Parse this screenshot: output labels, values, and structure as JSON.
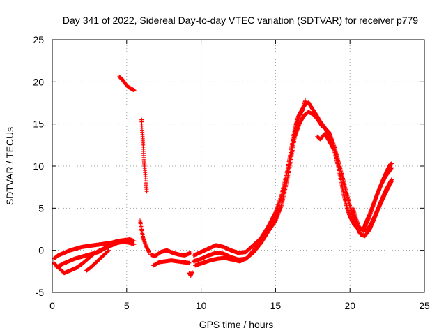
{
  "chart_data": {
    "type": "scatter",
    "title": "Day 341 of 2022, Sidereal Day-to-day VTEC variation (SDTVAR) for receiver p779",
    "xlabel": "GPS time / hours",
    "ylabel": "SDTVAR / TECUs",
    "xlim": [
      0,
      25
    ],
    "ylim": [
      -5,
      25
    ],
    "xticks": [
      0,
      5,
      10,
      15,
      20,
      25
    ],
    "yticks": [
      -5,
      0,
      5,
      10,
      15,
      20,
      25
    ],
    "xtick_labels": [
      "0",
      "5",
      "10",
      "15",
      "20",
      "25"
    ],
    "ytick_labels": [
      "-5",
      "0",
      "5",
      "10",
      "15",
      "20",
      "25"
    ],
    "grid": true,
    "marker": "+",
    "series": [
      {
        "name": "SDTVAR",
        "color": "#ff0000",
        "tracks": [
          [
            [
              0.1,
              -1.5
            ],
            [
              0.5,
              -2.2
            ],
            [
              0.8,
              -2.7
            ],
            [
              1.2,
              -2.4
            ],
            [
              1.6,
              -2.1
            ],
            [
              2.0,
              -1.6
            ],
            [
              2.4,
              -1.0
            ],
            [
              2.8,
              -0.4
            ],
            [
              3.2,
              0.0
            ],
            [
              3.6,
              0.3
            ],
            [
              4.0,
              0.6
            ],
            [
              4.4,
              0.9
            ],
            [
              4.8,
              1.0
            ],
            [
              5.2,
              0.9
            ],
            [
              5.5,
              0.7
            ]
          ],
          [
            [
              0.1,
              -1.0
            ],
            [
              0.4,
              -0.6
            ],
            [
              0.8,
              -0.3
            ],
            [
              1.2,
              0.0
            ],
            [
              1.6,
              0.2
            ],
            [
              2.0,
              0.4
            ],
            [
              2.4,
              0.5
            ],
            [
              2.8,
              0.6
            ],
            [
              3.2,
              0.7
            ],
            [
              3.6,
              0.8
            ],
            [
              4.0,
              0.9
            ],
            [
              4.4,
              1.1
            ],
            [
              4.8,
              1.2
            ],
            [
              5.2,
              1.3
            ],
            [
              5.5,
              1.1
            ]
          ],
          [
            [
              0.3,
              -2.0
            ],
            [
              0.7,
              -1.6
            ],
            [
              1.1,
              -1.3
            ],
            [
              1.5,
              -1.0
            ],
            [
              1.9,
              -0.8
            ],
            [
              2.3,
              -0.6
            ],
            [
              2.7,
              -0.4
            ],
            [
              3.1,
              -0.2
            ],
            [
              3.4,
              0.1
            ]
          ],
          [
            [
              2.3,
              -2.4
            ],
            [
              2.6,
              -2.0
            ],
            [
              2.9,
              -1.5
            ],
            [
              3.2,
              -1.0
            ],
            [
              3.5,
              -0.5
            ],
            [
              3.8,
              0.0
            ]
          ],
          [
            [
              4.5,
              20.6
            ],
            [
              4.7,
              20.3
            ],
            [
              4.9,
              19.8
            ],
            [
              5.1,
              19.4
            ],
            [
              5.3,
              19.2
            ],
            [
              5.5,
              19.0
            ]
          ],
          [
            [
              6.0,
              15.5
            ],
            [
              6.05,
              14.0
            ],
            [
              6.1,
              12.5
            ],
            [
              6.15,
              11.0
            ],
            [
              6.2,
              10.0
            ],
            [
              6.25,
              9.0
            ],
            [
              6.3,
              8.0
            ],
            [
              6.35,
              7.0
            ]
          ],
          [
            [
              5.9,
              3.5
            ],
            [
              6.0,
              2.5
            ],
            [
              6.1,
              1.5
            ],
            [
              6.3,
              0.5
            ],
            [
              6.5,
              -0.2
            ]
          ],
          [
            [
              6.6,
              -0.5
            ],
            [
              6.9,
              -0.7
            ],
            [
              7.3,
              -0.2
            ],
            [
              7.7,
              0.0
            ],
            [
              8.1,
              -0.3
            ],
            [
              8.5,
              -0.5
            ],
            [
              8.9,
              -0.6
            ],
            [
              9.3,
              -0.3
            ]
          ],
          [
            [
              6.8,
              -1.8
            ],
            [
              7.2,
              -1.4
            ],
            [
              7.6,
              -1.3
            ],
            [
              8.0,
              -1.2
            ],
            [
              8.4,
              -1.3
            ],
            [
              8.8,
              -1.4
            ],
            [
              9.2,
              -1.5
            ]
          ],
          [
            [
              9.2,
              -2.7
            ],
            [
              9.3,
              -3.0
            ],
            [
              9.4,
              -2.6
            ]
          ],
          [
            [
              9.5,
              -0.6
            ],
            [
              10.0,
              -0.2
            ],
            [
              10.5,
              0.2
            ],
            [
              11.0,
              0.6
            ],
            [
              11.5,
              0.4
            ],
            [
              12.0,
              0.0
            ],
            [
              12.5,
              -0.3
            ],
            [
              13.0,
              -0.2
            ],
            [
              13.5,
              0.6
            ],
            [
              14.0,
              1.4
            ],
            [
              14.5,
              2.8
            ],
            [
              15.0,
              4.5
            ],
            [
              15.4,
              6.5
            ],
            [
              15.8,
              9.5
            ],
            [
              16.1,
              12.5
            ],
            [
              16.3,
              14.5
            ],
            [
              16.5,
              15.8
            ],
            [
              16.8,
              16.8
            ],
            [
              17.0,
              17.3
            ],
            [
              17.2,
              17.6
            ],
            [
              17.4,
              17.0
            ],
            [
              17.7,
              16.2
            ],
            [
              18.0,
              15.3
            ],
            [
              18.3,
              14.6
            ],
            [
              18.6,
              13.6
            ],
            [
              18.9,
              12.2
            ],
            [
              19.2,
              10.0
            ],
            [
              19.4,
              8.2
            ],
            [
              19.6,
              6.5
            ],
            [
              19.8,
              5.0
            ],
            [
              20.0,
              4.0
            ],
            [
              20.3,
              3.0
            ],
            [
              20.6,
              2.5
            ],
            [
              20.9,
              2.6
            ],
            [
              21.2,
              3.5
            ],
            [
              21.5,
              5.0
            ],
            [
              21.8,
              6.5
            ],
            [
              22.1,
              7.8
            ],
            [
              22.4,
              8.8
            ],
            [
              22.7,
              9.5
            ],
            [
              22.8,
              9.8
            ]
          ],
          [
            [
              9.5,
              -1.3
            ],
            [
              10.0,
              -1.0
            ],
            [
              10.5,
              -0.6
            ],
            [
              11.0,
              -0.3
            ],
            [
              11.5,
              -0.4
            ],
            [
              12.0,
              -0.8
            ],
            [
              12.5,
              -1.1
            ],
            [
              13.0,
              -1.0
            ],
            [
              13.5,
              -0.3
            ],
            [
              14.0,
              0.8
            ],
            [
              14.5,
              2.2
            ],
            [
              15.0,
              3.5
            ],
            [
              15.4,
              5.3
            ],
            [
              15.8,
              8.5
            ],
            [
              16.1,
              11.5
            ],
            [
              16.3,
              13.5
            ],
            [
              16.6,
              15.0
            ],
            [
              16.9,
              16.0
            ],
            [
              17.2,
              16.4
            ],
            [
              17.5,
              16.2
            ],
            [
              17.8,
              15.6
            ],
            [
              18.1,
              14.8
            ],
            [
              18.4,
              14.4
            ],
            [
              18.6,
              14.0
            ],
            [
              18.9,
              12.6
            ],
            [
              19.2,
              10.7
            ],
            [
              19.5,
              8.7
            ],
            [
              19.8,
              6.6
            ],
            [
              20.1,
              4.6
            ],
            [
              20.4,
              3.0
            ],
            [
              20.7,
              1.9
            ],
            [
              21.0,
              1.7
            ],
            [
              21.3,
              2.4
            ],
            [
              21.6,
              3.6
            ],
            [
              21.9,
              4.9
            ],
            [
              22.2,
              6.1
            ],
            [
              22.5,
              7.2
            ],
            [
              22.7,
              7.9
            ],
            [
              22.8,
              8.2
            ]
          ],
          [
            [
              9.6,
              -1.8
            ],
            [
              10.1,
              -1.5
            ],
            [
              10.6,
              -1.2
            ],
            [
              11.1,
              -1.0
            ],
            [
              11.6,
              -0.9
            ],
            [
              12.1,
              -1.1
            ],
            [
              12.6,
              -1.3
            ],
            [
              13.1,
              -0.9
            ],
            [
              13.6,
              0.2
            ],
            [
              14.1,
              1.5
            ],
            [
              14.6,
              3.0
            ],
            [
              15.0,
              4.0
            ],
            [
              15.3,
              5.0
            ]
          ],
          [
            [
              20.2,
              5.0
            ],
            [
              20.4,
              3.8
            ],
            [
              20.6,
              2.8
            ],
            [
              20.9,
              2.3
            ],
            [
              21.2,
              2.6
            ],
            [
              21.5,
              3.4
            ],
            [
              21.8,
              4.6
            ],
            [
              22.1,
              5.9
            ],
            [
              22.4,
              7.1
            ],
            [
              22.7,
              8.1
            ],
            [
              22.8,
              8.4
            ]
          ],
          [
            [
              21.0,
              3.0
            ],
            [
              21.3,
              4.2
            ],
            [
              21.6,
              5.6
            ],
            [
              21.9,
              7.0
            ],
            [
              22.2,
              8.3
            ],
            [
              22.5,
              9.5
            ],
            [
              22.7,
              10.2
            ],
            [
              22.8,
              10.3
            ]
          ],
          [
            [
              17.8,
              13.5
            ],
            [
              18.0,
              13.2
            ],
            [
              18.3,
              13.8
            ],
            [
              18.6,
              13.0
            ],
            [
              18.9,
              12.0
            ]
          ],
          [
            [
              16.2,
              13.0
            ],
            [
              16.4,
              14.8
            ],
            [
              16.6,
              16.0
            ],
            [
              16.8,
              16.6
            ],
            [
              17.0,
              17.8
            ]
          ]
        ]
      }
    ]
  }
}
